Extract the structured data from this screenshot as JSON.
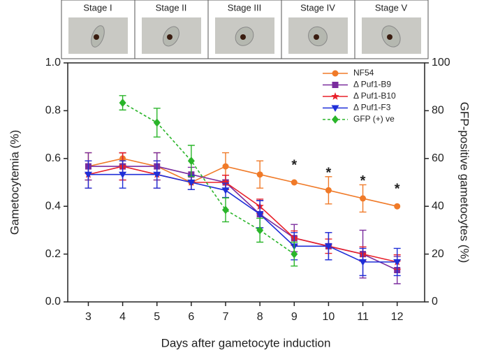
{
  "stages": [
    "Stage I",
    "Stage II",
    "Stage III",
    "Stage IV",
    "Stage V"
  ],
  "chart_data": {
    "type": "line",
    "xlabel": "Days after gametocyte induction",
    "ylabel": "Gametocytemia (%)",
    "y2label": "GFP-positive gametocytes (%)",
    "x": [
      3,
      4,
      5,
      6,
      7,
      8,
      9,
      10,
      11,
      12
    ],
    "xlim": [
      2.4,
      12.8
    ],
    "xticks": [
      3,
      4,
      5,
      6,
      7,
      8,
      9,
      10,
      11,
      12
    ],
    "ylim": [
      0,
      1
    ],
    "yticks": [
      {
        "value": 0,
        "label": "0.0"
      },
      {
        "value": 0.2,
        "label": "0.2"
      },
      {
        "value": 0.4,
        "label": "0.4"
      },
      {
        "value": 0.6,
        "label": "0.6"
      },
      {
        "value": 0.8,
        "label": "0.8"
      },
      {
        "value": 1,
        "label": "1.0"
      }
    ],
    "y2lim": [
      0,
      100
    ],
    "y2ticks": [
      0,
      20,
      40,
      60,
      80,
      100
    ],
    "legend": "upper right",
    "series": [
      {
        "name": "NF54",
        "color": "#f07a28",
        "marker": "circle",
        "values": [
          0.567,
          0.6,
          0.567,
          0.5,
          0.567,
          0.533,
          0.5,
          0.467,
          0.433,
          0.4
        ],
        "errors": [
          0.057,
          0.023,
          0.057,
          0.03,
          0.057,
          0.057,
          0,
          0.057,
          0.057,
          0
        ]
      },
      {
        "name": "Δ Puf1-B9",
        "color": "#7b2d9e",
        "marker": "square",
        "values": [
          0.567,
          0.567,
          0.567,
          0.533,
          0.5,
          0.367,
          0.267,
          0.233,
          0.2,
          0.133
        ],
        "errors": [
          0.057,
          0.057,
          0.057,
          0.03,
          0.03,
          0.057,
          0.057,
          0.057,
          0.1,
          0.057
        ]
      },
      {
        "name": "Δ Puf1-B10",
        "color": "#e8202a",
        "marker": "star",
        "values": [
          0.533,
          0.567,
          0.533,
          0.5,
          0.5,
          0.4,
          0.267,
          0.233,
          0.2,
          0.167
        ],
        "errors": [
          0.057,
          0.057,
          0.057,
          0.03,
          0.03,
          0.03,
          0.03,
          0.03,
          0.03,
          0.03
        ]
      },
      {
        "name": "Δ Puf1-F3",
        "color": "#1f2fd8",
        "marker": "tri",
        "values": [
          0.533,
          0.533,
          0.533,
          0.5,
          0.467,
          0.367,
          0.233,
          0.233,
          0.167,
          0.167
        ],
        "errors": [
          0.057,
          0.057,
          0.057,
          0.03,
          0.03,
          0.057,
          0.057,
          0.057,
          0.057,
          0.057
        ]
      },
      {
        "name": "GFP (+) ve",
        "color": "#2ab52a",
        "marker": "diamond",
        "dashed": true,
        "axis": "y2",
        "values": [
          null,
          83.3,
          75,
          59,
          38.5,
          30,
          20,
          null,
          null,
          null
        ],
        "errors": [
          null,
          3,
          6,
          6.5,
          5,
          5,
          5,
          null,
          null,
          null
        ]
      }
    ],
    "annotations": [
      {
        "text": "*",
        "x": 9
      },
      {
        "text": "*",
        "x": 10
      },
      {
        "text": "*",
        "x": 11
      },
      {
        "text": "*",
        "x": 12
      }
    ]
  }
}
